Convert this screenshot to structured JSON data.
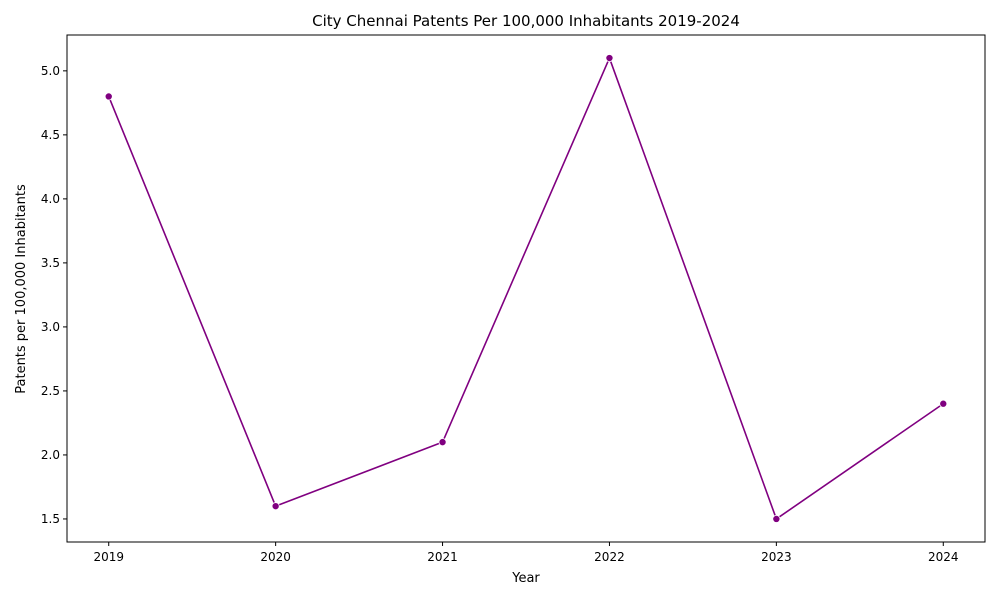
{
  "chart_data": {
    "type": "line",
    "title": "City Chennai Patents Per 100,000 Inhabitants 2019-2024",
    "xlabel": "Year",
    "ylabel": "Patents per 100,000 Inhabitants",
    "x": [
      2019,
      2020,
      2021,
      2022,
      2023,
      2024
    ],
    "series": [
      {
        "values": [
          4.8,
          1.6,
          2.1,
          5.1,
          1.5,
          2.4
        ],
        "color": "#800080",
        "marker": "circle"
      }
    ],
    "xlim": [
      2018.75,
      2024.25
    ],
    "ylim": [
      1.32,
      5.28
    ],
    "yticks": [
      1.5,
      2.0,
      2.5,
      3.0,
      3.5,
      4.0,
      4.5,
      5.0
    ],
    "ytick_labels": [
      "1.5",
      "2.0",
      "2.5",
      "3.0",
      "3.5",
      "4.0",
      "4.5",
      "5.0"
    ],
    "xticks": [
      2019,
      2020,
      2021,
      2022,
      2023,
      2024
    ],
    "xtick_labels": [
      "2019",
      "2020",
      "2021",
      "2022",
      "2023",
      "2024"
    ],
    "grid": false,
    "legend": false
  }
}
